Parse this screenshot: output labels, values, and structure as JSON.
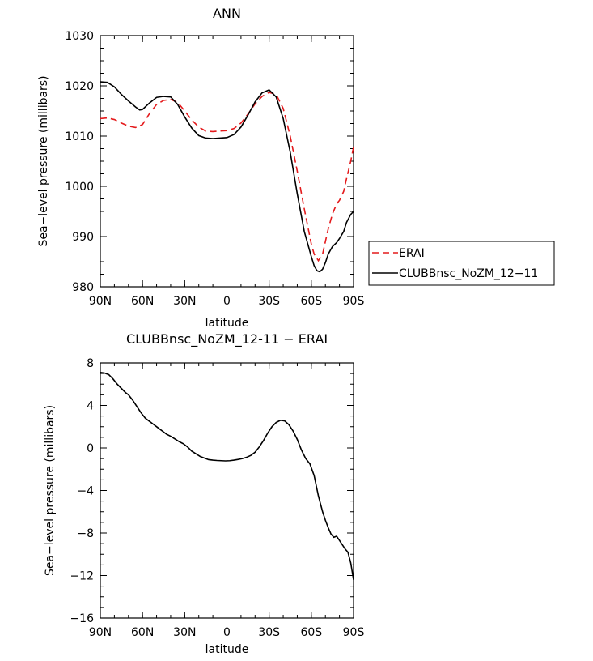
{
  "chart_data": [
    {
      "type": "line",
      "title": "ANN",
      "xlabel": "latitude",
      "ylabel": "Sea-level pressure (millibars)",
      "xlim": [
        90,
        -90
      ],
      "ylim": [
        980,
        1030
      ],
      "x_tick_values": [
        90,
        60,
        30,
        0,
        -30,
        -60,
        -90
      ],
      "x_tick_labels": [
        "90N",
        "60N",
        "30N",
        "0",
        "30S",
        "60S",
        "90S"
      ],
      "y_tick_values": [
        980,
        990,
        1000,
        1010,
        1020,
        1030
      ],
      "y_tick_labels": [
        "980",
        "990",
        "1000",
        "1010",
        "1020",
        "1030"
      ],
      "legend": {
        "placement": "right"
      },
      "series": [
        {
          "name": "ERAI",
          "color": "#e41a1c",
          "dash": "dashed",
          "x": [
            90,
            85,
            80,
            75,
            70,
            65,
            60,
            55,
            50,
            45,
            40,
            35,
            30,
            25,
            20,
            15,
            10,
            5,
            0,
            -5,
            -10,
            -15,
            -20,
            -25,
            -30,
            -35,
            -40,
            -45,
            -50,
            -55,
            -60,
            -62,
            -65,
            -68,
            -70,
            -72,
            -75,
            -78,
            -80,
            -83,
            -85,
            -88,
            -90
          ],
          "y": [
            1013.5,
            1013.6,
            1013.3,
            1012.6,
            1012.0,
            1011.7,
            1012.3,
            1014.5,
            1016.3,
            1017.1,
            1017.3,
            1016.7,
            1015.0,
            1013.2,
            1011.8,
            1011.0,
            1010.9,
            1011.0,
            1011.1,
            1011.5,
            1012.6,
            1014.4,
            1016.4,
            1017.9,
            1018.7,
            1018.3,
            1015.5,
            1010.0,
            1003.0,
            995.5,
            988.5,
            986.5,
            985.2,
            986.5,
            989.0,
            991.5,
            994.5,
            996.5,
            997.2,
            999.0,
            1001.5,
            1005.0,
            1007.8
          ]
        },
        {
          "name": "CLUBBnsc_NoZM_12-11",
          "color": "#000000",
          "dash": "solid",
          "x": [
            90,
            85,
            80,
            75,
            70,
            65,
            62,
            60,
            55,
            50,
            45,
            40,
            35,
            30,
            25,
            20,
            15,
            10,
            5,
            0,
            -5,
            -10,
            -15,
            -20,
            -25,
            -30,
            -35,
            -40,
            -45,
            -50,
            -55,
            -60,
            -62,
            -64,
            -66,
            -68,
            -70,
            -72,
            -75,
            -78,
            -80,
            -83,
            -85,
            -88,
            -90
          ],
          "y": [
            1020.8,
            1020.7,
            1019.8,
            1018.3,
            1017.0,
            1015.8,
            1015.2,
            1015.3,
            1016.6,
            1017.7,
            1017.9,
            1017.8,
            1016.3,
            1013.8,
            1011.6,
            1010.1,
            1009.6,
            1009.5,
            1009.6,
            1009.7,
            1010.3,
            1011.8,
            1014.2,
            1016.8,
            1018.6,
            1019.2,
            1017.8,
            1013.5,
            1006.8,
            998.5,
            991.0,
            986.0,
            984.2,
            983.2,
            983.0,
            983.5,
            984.8,
            986.5,
            988.0,
            988.8,
            989.6,
            991.0,
            992.8,
            994.4,
            995.0
          ]
        }
      ]
    },
    {
      "type": "line",
      "title": "CLUBBnsc_NoZM_12-11 - ERAI",
      "xlabel": "latitude",
      "ylabel": "Sea-level pressure (millibars)",
      "xlim": [
        90,
        -90
      ],
      "ylim": [
        -16,
        8
      ],
      "x_tick_values": [
        90,
        60,
        30,
        0,
        -30,
        -60,
        -90
      ],
      "x_tick_labels": [
        "90N",
        "60N",
        "30N",
        "0",
        "30S",
        "60S",
        "90S"
      ],
      "y_tick_values": [
        -16,
        -12,
        -8,
        -4,
        0,
        4,
        8
      ],
      "y_tick_labels": [
        "-16",
        "-12",
        "-8",
        "-4",
        "0",
        "4",
        "8"
      ],
      "series": [
        {
          "color": "#000000",
          "dash": "solid",
          "x": [
            90,
            87,
            84,
            81,
            78,
            75,
            72,
            70,
            67,
            64,
            61,
            58,
            55,
            52,
            49,
            46,
            43,
            40,
            37,
            34,
            31,
            28,
            25,
            22,
            19,
            16,
            13,
            10,
            7,
            4,
            1,
            -2,
            -5,
            -8,
            -11,
            -14,
            -17,
            -20,
            -23,
            -26,
            -29,
            -32,
            -35,
            -38,
            -41,
            -44,
            -47,
            -50,
            -53,
            -56,
            -59,
            -62,
            -65,
            -68,
            -70,
            -72,
            -74,
            -76,
            -78,
            -80,
            -82,
            -84,
            -86,
            -88,
            -90
          ],
          "y": [
            7.1,
            7.05,
            6.9,
            6.5,
            6.0,
            5.6,
            5.2,
            5.0,
            4.5,
            3.9,
            3.3,
            2.8,
            2.5,
            2.2,
            1.9,
            1.6,
            1.3,
            1.1,
            0.85,
            0.6,
            0.4,
            0.1,
            -0.3,
            -0.55,
            -0.8,
            -0.95,
            -1.1,
            -1.15,
            -1.18,
            -1.2,
            -1.22,
            -1.2,
            -1.15,
            -1.08,
            -1.0,
            -0.88,
            -0.7,
            -0.4,
            0.1,
            0.7,
            1.4,
            2.0,
            2.4,
            2.6,
            2.55,
            2.2,
            1.6,
            0.8,
            -0.2,
            -1.0,
            -1.5,
            -2.6,
            -4.5,
            -6.0,
            -6.8,
            -7.5,
            -8.1,
            -8.4,
            -8.3,
            -8.7,
            -9.1,
            -9.5,
            -9.8,
            -10.8,
            -12.4
          ]
        }
      ]
    }
  ]
}
